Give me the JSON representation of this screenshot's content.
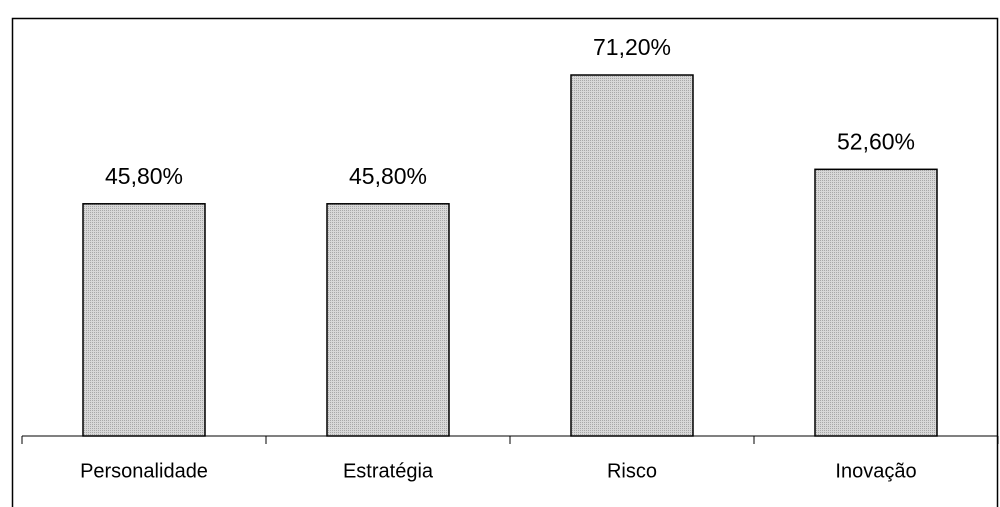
{
  "chart_data": {
    "type": "bar",
    "categories": [
      "Personalidade",
      "Estratégia",
      "Risco",
      "Inovação"
    ],
    "values": [
      45.8,
      45.8,
      71.2,
      52.6
    ],
    "value_labels": [
      "45,80%",
      "45,80%",
      "71,20%",
      "52,60%"
    ],
    "color": "#c4c4c4"
  }
}
